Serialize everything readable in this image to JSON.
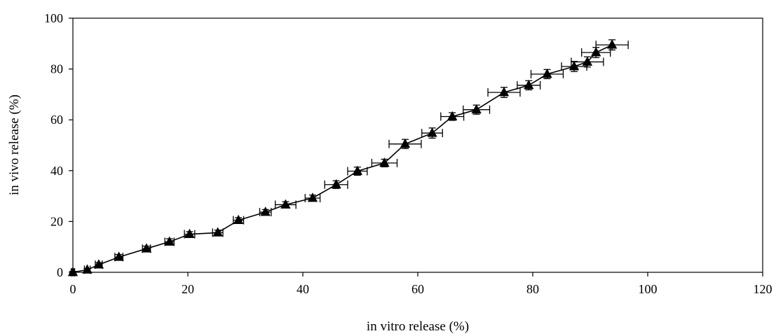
{
  "chart_data": {
    "type": "scatter",
    "title": "",
    "xlabel": "in vitro release (%)",
    "ylabel": "in vivo release (%)",
    "xlim": [
      0,
      120
    ],
    "ylim": [
      0,
      100
    ],
    "xticks": [
      "0",
      "20",
      "40",
      "60",
      "80",
      "100",
      "120"
    ],
    "yticks": [
      "0",
      "20",
      "40",
      "60",
      "80",
      "100"
    ],
    "grid": false,
    "legend": "none",
    "marker": "triangle",
    "line": "solid",
    "colors": {
      "series": "#000000",
      "axis": "#000000",
      "background": "#ffffff"
    },
    "series": [
      {
        "points": [
          {
            "x": 0.0,
            "y": 0.0,
            "xerr": 0.3,
            "yerr": 0.4
          },
          {
            "x": 2.5,
            "y": 1.0,
            "xerr": 0.5,
            "yerr": 0.5
          },
          {
            "x": 4.5,
            "y": 3.0,
            "xerr": 0.6,
            "yerr": 0.8
          },
          {
            "x": 8.0,
            "y": 6.0,
            "xerr": 0.7,
            "yerr": 1.0
          },
          {
            "x": 12.8,
            "y": 9.3,
            "xerr": 0.7,
            "yerr": 1.0
          },
          {
            "x": 16.8,
            "y": 12.0,
            "xerr": 0.8,
            "yerr": 1.2
          },
          {
            "x": 20.3,
            "y": 15.0,
            "xerr": 0.9,
            "yerr": 1.0
          },
          {
            "x": 25.2,
            "y": 15.6,
            "xerr": 0.9,
            "yerr": 1.0
          },
          {
            "x": 28.8,
            "y": 20.5,
            "xerr": 0.9,
            "yerr": 1.0
          },
          {
            "x": 33.5,
            "y": 23.7,
            "xerr": 1.0,
            "yerr": 1.0
          },
          {
            "x": 37.0,
            "y": 26.6,
            "xerr": 1.8,
            "yerr": 1.2
          },
          {
            "x": 41.7,
            "y": 29.2,
            "xerr": 1.3,
            "yerr": 1.2
          },
          {
            "x": 45.8,
            "y": 34.5,
            "xerr": 2.0,
            "yerr": 1.5
          },
          {
            "x": 49.5,
            "y": 39.8,
            "xerr": 1.7,
            "yerr": 1.6
          },
          {
            "x": 54.2,
            "y": 43.0,
            "xerr": 2.2,
            "yerr": 1.5
          },
          {
            "x": 57.8,
            "y": 50.5,
            "xerr": 2.8,
            "yerr": 1.8
          },
          {
            "x": 62.5,
            "y": 54.8,
            "xerr": 1.8,
            "yerr": 2.0
          },
          {
            "x": 66.0,
            "y": 61.3,
            "xerr": 2.0,
            "yerr": 1.5
          },
          {
            "x": 70.2,
            "y": 64.0,
            "xerr": 2.3,
            "yerr": 1.8
          },
          {
            "x": 75.0,
            "y": 70.8,
            "xerr": 2.8,
            "yerr": 2.0
          },
          {
            "x": 79.3,
            "y": 73.6,
            "xerr": 2.0,
            "yerr": 1.8
          },
          {
            "x": 82.5,
            "y": 78.0,
            "xerr": 2.8,
            "yerr": 1.8
          },
          {
            "x": 87.2,
            "y": 81.0,
            "xerr": 2.2,
            "yerr": 2.0
          },
          {
            "x": 89.5,
            "y": 82.8,
            "xerr": 2.8,
            "yerr": 2.0
          },
          {
            "x": 91.0,
            "y": 86.5,
            "xerr": 2.5,
            "yerr": 2.0
          },
          {
            "x": 93.8,
            "y": 89.5,
            "xerr": 2.8,
            "yerr": 2.0
          }
        ]
      }
    ]
  }
}
